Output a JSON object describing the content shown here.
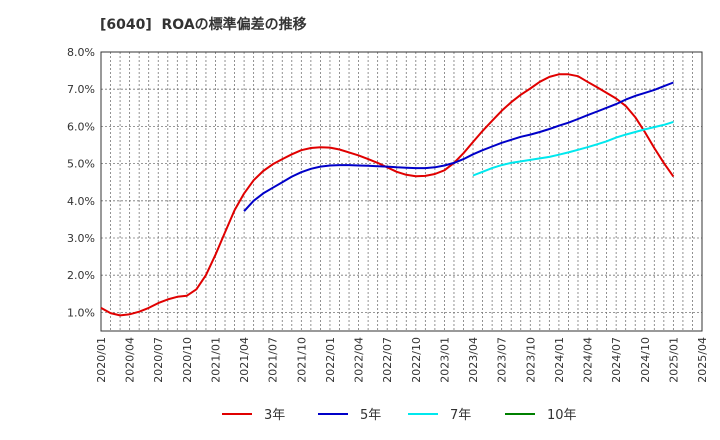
{
  "chart_data": {
    "type": "line",
    "title": "[6040]  ROAの標準偏差の推移",
    "xlabel": "",
    "ylabel": "",
    "ylim": [
      0.5,
      8.0
    ],
    "y_ticks": [
      "1.0%",
      "2.0%",
      "3.0%",
      "4.0%",
      "5.0%",
      "6.0%",
      "7.0%",
      "8.0%"
    ],
    "x_ticks": [
      "2020/01",
      "2020/04",
      "2020/07",
      "2020/10",
      "2021/01",
      "2021/04",
      "2021/07",
      "2021/10",
      "2022/01",
      "2022/04",
      "2022/07",
      "2022/10",
      "2023/01",
      "2023/04",
      "2023/07",
      "2023/10",
      "2024/01",
      "2024/04",
      "2024/07",
      "2024/10",
      "2025/01",
      "2025/04"
    ],
    "grid": true,
    "legend_position": "bottom",
    "series": [
      {
        "name": "3年",
        "color": "#e00000",
        "x": [
          "2020/01",
          "2020/02",
          "2020/03",
          "2020/04",
          "2020/05",
          "2020/06",
          "2020/07",
          "2020/08",
          "2020/09",
          "2020/10",
          "2020/11",
          "2020/12",
          "2021/01",
          "2021/02",
          "2021/03",
          "2021/04",
          "2021/05",
          "2021/06",
          "2021/07",
          "2021/08",
          "2021/09",
          "2021/10",
          "2021/11",
          "2021/12",
          "2022/01",
          "2022/02",
          "2022/03",
          "2022/04",
          "2022/05",
          "2022/06",
          "2022/07",
          "2022/08",
          "2022/09",
          "2022/10",
          "2022/11",
          "2022/12",
          "2023/01",
          "2023/02",
          "2023/03",
          "2023/04",
          "2023/05",
          "2023/06",
          "2023/07",
          "2023/08",
          "2023/09",
          "2023/10",
          "2023/11",
          "2023/12",
          "2024/01",
          "2024/02",
          "2024/03",
          "2024/04",
          "2024/05",
          "2024/06",
          "2024/07",
          "2024/08",
          "2024/09",
          "2024/10",
          "2024/11",
          "2024/12",
          "2025/01"
        ],
        "values": [
          1.12,
          0.98,
          0.92,
          0.95,
          1.02,
          1.12,
          1.25,
          1.35,
          1.42,
          1.45,
          1.62,
          2.0,
          2.55,
          3.15,
          3.75,
          4.2,
          4.55,
          4.8,
          4.98,
          5.12,
          5.25,
          5.36,
          5.42,
          5.44,
          5.43,
          5.38,
          5.3,
          5.22,
          5.12,
          5.02,
          4.9,
          4.78,
          4.7,
          4.66,
          4.67,
          4.72,
          4.82,
          5.02,
          5.28,
          5.58,
          5.88,
          6.15,
          6.42,
          6.65,
          6.85,
          7.02,
          7.2,
          7.33,
          7.4,
          7.4,
          7.35,
          7.2,
          7.05,
          6.9,
          6.75,
          6.55,
          6.25,
          5.85,
          5.42,
          5.02,
          4.65
        ]
      },
      {
        "name": "5年",
        "color": "#0000c8",
        "x": [
          "2021/04",
          "2021/05",
          "2021/06",
          "2021/07",
          "2021/08",
          "2021/09",
          "2021/10",
          "2021/11",
          "2021/12",
          "2022/01",
          "2022/02",
          "2022/03",
          "2022/04",
          "2022/05",
          "2022/06",
          "2022/07",
          "2022/08",
          "2022/09",
          "2022/10",
          "2022/11",
          "2022/12",
          "2023/01",
          "2023/02",
          "2023/03",
          "2023/04",
          "2023/05",
          "2023/06",
          "2023/07",
          "2023/08",
          "2023/09",
          "2023/10",
          "2023/11",
          "2023/12",
          "2024/01",
          "2024/02",
          "2024/03",
          "2024/04",
          "2024/05",
          "2024/06",
          "2024/07",
          "2024/08",
          "2024/09",
          "2024/10",
          "2024/11",
          "2024/12",
          "2025/01"
        ],
        "values": [
          3.72,
          4.0,
          4.2,
          4.35,
          4.5,
          4.65,
          4.77,
          4.86,
          4.92,
          4.95,
          4.96,
          4.96,
          4.95,
          4.94,
          4.93,
          4.92,
          4.9,
          4.89,
          4.88,
          4.88,
          4.9,
          4.95,
          5.02,
          5.12,
          5.25,
          5.36,
          5.46,
          5.56,
          5.64,
          5.72,
          5.78,
          5.85,
          5.93,
          6.02,
          6.1,
          6.2,
          6.3,
          6.4,
          6.5,
          6.6,
          6.72,
          6.82,
          6.9,
          6.98,
          7.08,
          7.18
        ]
      },
      {
        "name": "7年",
        "color": "#00e8ee",
        "x": [
          "2023/04",
          "2023/05",
          "2023/06",
          "2023/07",
          "2023/08",
          "2023/09",
          "2023/10",
          "2023/11",
          "2023/12",
          "2024/01",
          "2024/02",
          "2024/03",
          "2024/04",
          "2024/05",
          "2024/06",
          "2024/07",
          "2024/08",
          "2024/09",
          "2024/10",
          "2024/11",
          "2024/12",
          "2025/01"
        ],
        "values": [
          4.68,
          4.78,
          4.88,
          4.96,
          5.02,
          5.06,
          5.1,
          5.14,
          5.18,
          5.24,
          5.3,
          5.37,
          5.44,
          5.52,
          5.6,
          5.7,
          5.78,
          5.85,
          5.92,
          5.98,
          6.04,
          6.12
        ]
      },
      {
        "name": "10年",
        "color": "#008000",
        "x": [],
        "values": []
      }
    ]
  }
}
